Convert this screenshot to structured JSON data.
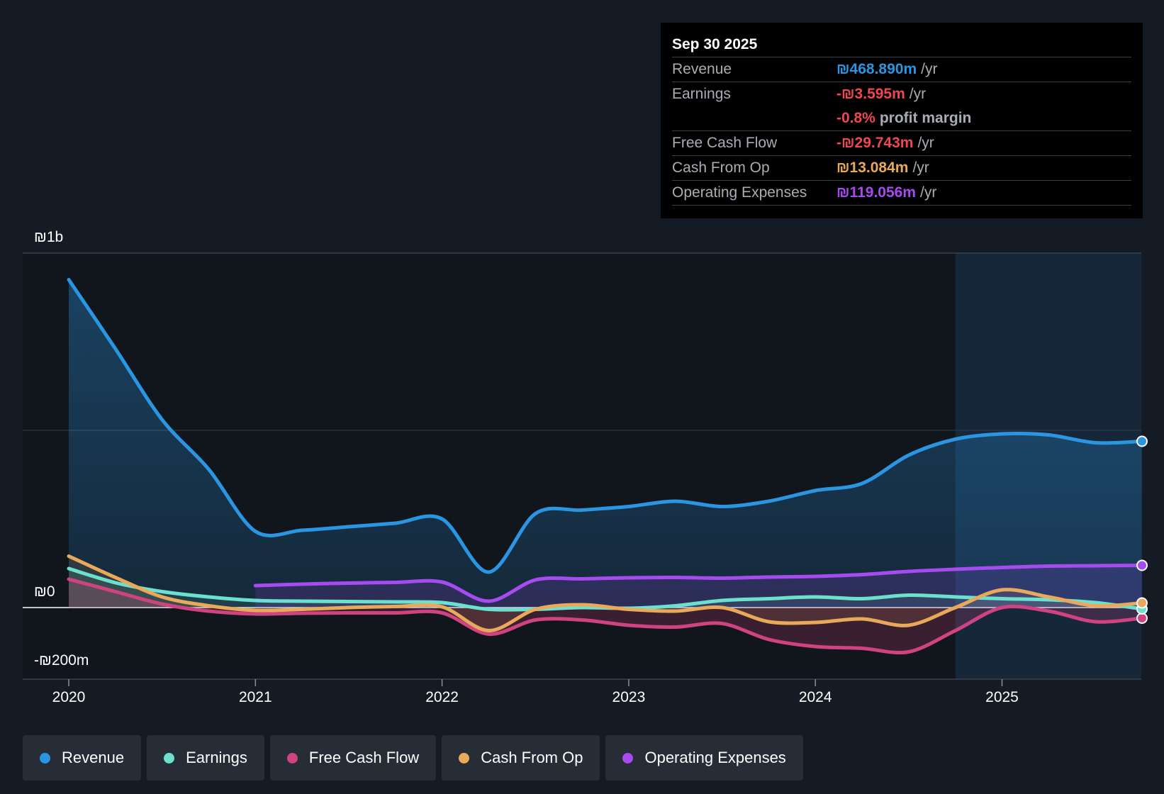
{
  "tooltip": {
    "date": "Sep 30 2025",
    "rows": [
      {
        "label": "Revenue",
        "value": "₪468.890m",
        "unit": "/yr",
        "color": "#2a96e2"
      },
      {
        "label": "Earnings",
        "value": "-₪3.595m",
        "unit": "/yr",
        "color": "#ef4752"
      },
      {
        "label": "",
        "value": "-0.8%",
        "unit": "profit margin",
        "color": "#ef4752"
      },
      {
        "label": "Free Cash Flow",
        "value": "-₪29.743m",
        "unit": "/yr",
        "color": "#ef4752"
      },
      {
        "label": "Cash From Op",
        "value": "₪13.084m",
        "unit": "/yr",
        "color": "#e8a95b"
      },
      {
        "label": "Operating Expenses",
        "value": "₪119.056m",
        "unit": "/yr",
        "color": "#a64bf0"
      }
    ]
  },
  "legend": [
    {
      "label": "Revenue",
      "color": "#2a96e2"
    },
    {
      "label": "Earnings",
      "color": "#6ce0cf"
    },
    {
      "label": "Free Cash Flow",
      "color": "#cf4381"
    },
    {
      "label": "Cash From Op",
      "color": "#e8a95b"
    },
    {
      "label": "Operating Expenses",
      "color": "#a64bf0"
    }
  ],
  "chart_data": {
    "type": "line",
    "title": "",
    "xlabel": "",
    "ylabel": "",
    "xlim": [
      2019.75,
      2025.75
    ],
    "ylim": [
      -200,
      1000
    ],
    "y_tick_labels": [
      {
        "value": 1000,
        "label": "₪1b"
      },
      {
        "value": 0,
        "label": "₪0"
      },
      {
        "value": -200,
        "label": "-₪200m"
      }
    ],
    "x_ticks": [
      2020,
      2021,
      2022,
      2023,
      2024,
      2025
    ],
    "x_tick_labels": [
      "2020",
      "2021",
      "2022",
      "2023",
      "2024",
      "2025"
    ],
    "forecast_start": 2024.75,
    "series": [
      {
        "name": "Revenue",
        "color": "#2a96e2",
        "x": [
          2020.0,
          2020.25,
          2020.5,
          2020.75,
          2021.0,
          2021.25,
          2021.5,
          2021.75,
          2022.0,
          2022.25,
          2022.5,
          2022.75,
          2023.0,
          2023.25,
          2023.5,
          2023.75,
          2024.0,
          2024.25,
          2024.5,
          2024.75,
          2025.0,
          2025.25,
          2025.5,
          2025.75
        ],
        "values": [
          925,
          730,
          530,
          390,
          215,
          218,
          228,
          238,
          250,
          100,
          265,
          275,
          285,
          300,
          285,
          300,
          330,
          350,
          430,
          475,
          490,
          487,
          465,
          469
        ]
      },
      {
        "name": "Earnings",
        "color": "#6ce0cf",
        "x": [
          2020.0,
          2020.25,
          2020.5,
          2020.75,
          2021.0,
          2021.25,
          2021.5,
          2021.75,
          2022.0,
          2022.25,
          2022.5,
          2022.75,
          2023.0,
          2023.25,
          2023.5,
          2023.75,
          2024.0,
          2024.25,
          2024.5,
          2024.75,
          2025.0,
          2025.25,
          2025.5,
          2025.75
        ],
        "values": [
          110,
          70,
          45,
          30,
          20,
          18,
          17,
          16,
          14,
          -5,
          -5,
          0,
          -2,
          5,
          20,
          25,
          30,
          25,
          35,
          30,
          25,
          22,
          14,
          -4
        ]
      },
      {
        "name": "Free Cash Flow",
        "color": "#cf4381",
        "x": [
          2020.0,
          2020.25,
          2020.5,
          2020.75,
          2021.0,
          2021.25,
          2021.5,
          2021.75,
          2022.0,
          2022.25,
          2022.5,
          2022.75,
          2023.0,
          2023.25,
          2023.5,
          2023.75,
          2024.0,
          2024.25,
          2024.5,
          2024.75,
          2025.0,
          2025.25,
          2025.5,
          2025.75
        ],
        "values": [
          80,
          45,
          10,
          -10,
          -18,
          -16,
          -15,
          -15,
          -15,
          -75,
          -35,
          -35,
          -50,
          -55,
          -45,
          -90,
          -110,
          -115,
          -125,
          -65,
          0,
          -10,
          -40,
          -30
        ]
      },
      {
        "name": "Cash From Op",
        "color": "#e8a95b",
        "x": [
          2020.0,
          2020.25,
          2020.5,
          2020.75,
          2021.0,
          2021.25,
          2021.5,
          2021.75,
          2022.0,
          2022.25,
          2022.5,
          2022.75,
          2023.0,
          2023.25,
          2023.5,
          2023.75,
          2024.0,
          2024.25,
          2024.5,
          2024.75,
          2025.0,
          2025.25,
          2025.5,
          2025.75
        ],
        "values": [
          145,
          85,
          30,
          5,
          -8,
          -5,
          0,
          3,
          2,
          -65,
          -5,
          8,
          -5,
          -10,
          0,
          -40,
          -42,
          -32,
          -50,
          0,
          50,
          30,
          5,
          13
        ]
      },
      {
        "name": "Operating Expenses",
        "color": "#a64bf0",
        "x": [
          2021.0,
          2021.25,
          2021.5,
          2021.75,
          2022.0,
          2022.25,
          2022.5,
          2022.75,
          2023.0,
          2023.25,
          2023.5,
          2023.75,
          2024.0,
          2024.25,
          2024.5,
          2024.75,
          2025.0,
          2025.25,
          2025.5,
          2025.75
        ],
        "values": [
          62,
          66,
          69,
          71,
          72,
          18,
          78,
          81,
          84,
          85,
          83,
          86,
          88,
          93,
          102,
          108,
          113,
          117,
          118,
          119
        ]
      }
    ]
  }
}
